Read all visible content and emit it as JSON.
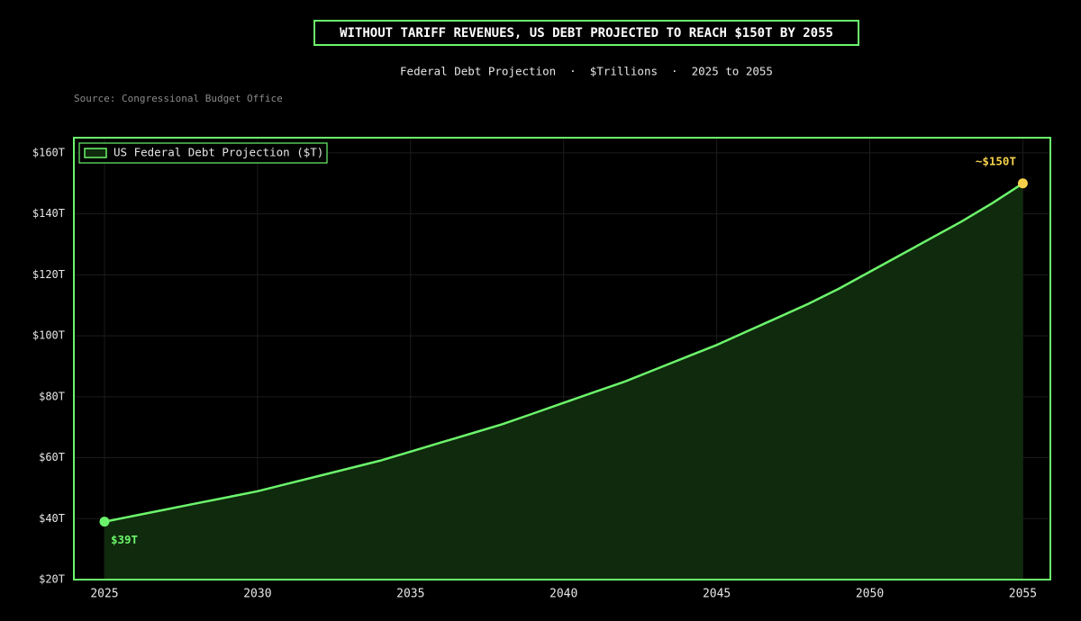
{
  "chart_data": {
    "type": "line",
    "title": "WITHOUT TARIFF REVENUES, US DEBT PROJECTED TO REACH $150T BY 2055",
    "subtitle": "Federal Debt Projection  ·  $Trillions  ·  2025 to 2055",
    "source": "Source: Congressional Budget Office",
    "x": [
      2025,
      2026,
      2027,
      2028,
      2029,
      2030,
      2031,
      2032,
      2033,
      2034,
      2035,
      2036,
      2037,
      2038,
      2039,
      2040,
      2041,
      2042,
      2043,
      2044,
      2045,
      2046,
      2047,
      2048,
      2049,
      2050,
      2051,
      2052,
      2053,
      2054,
      2055
    ],
    "series": [
      {
        "name": "US Federal Debt Projection ($T)",
        "color": "#6cf56c",
        "values": [
          39,
          41,
          43,
          45,
          47,
          49,
          51.5,
          54,
          56.5,
          59,
          62,
          65,
          68,
          71,
          74.5,
          78,
          81.5,
          85,
          89,
          93,
          97,
          101.5,
          106,
          110.5,
          115.5,
          121,
          126.5,
          132,
          137.5,
          143.5,
          150
        ]
      }
    ],
    "annotations": [
      {
        "text": "$39T",
        "color": "#6cf56c"
      },
      {
        "text": "~$150T",
        "color": "#f5d04a"
      }
    ],
    "xlim": [
      2024,
      2055.9
    ],
    "ylim": [
      20,
      165
    ],
    "xticks": [
      2025,
      2030,
      2035,
      2040,
      2045,
      2050,
      2055
    ],
    "yticks": [
      {
        "value": 20,
        "label": "$20T"
      },
      {
        "value": 40,
        "label": "$40T"
      },
      {
        "value": 60,
        "label": "$60T"
      },
      {
        "value": 80,
        "label": "$80T"
      },
      {
        "value": 100,
        "label": "$100T"
      },
      {
        "value": 120,
        "label": "$120T"
      },
      {
        "value": 140,
        "label": "$140T"
      },
      {
        "value": 160,
        "label": "$160T"
      }
    ],
    "grid": true,
    "fill_color": "#0f2a0c",
    "legend": "upper left"
  }
}
